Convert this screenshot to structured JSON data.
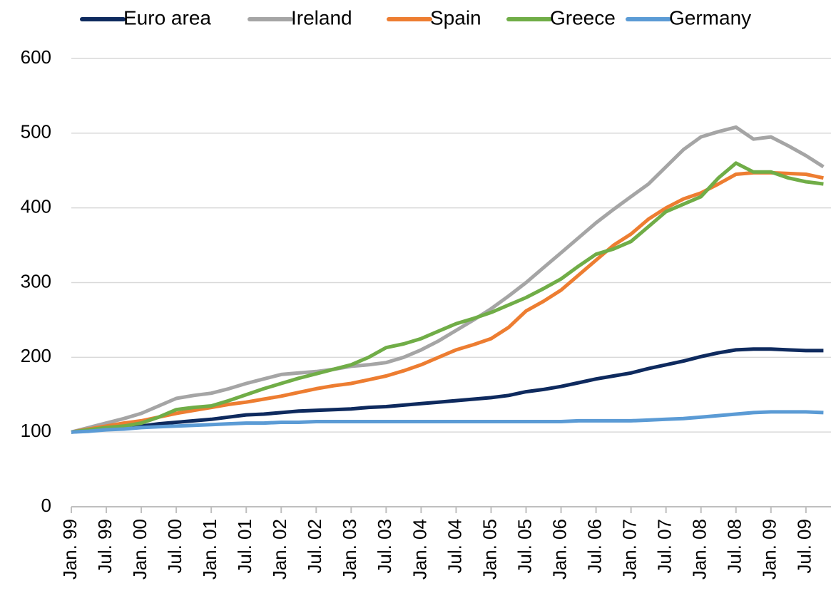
{
  "chart_data": {
    "type": "line",
    "categories": [
      "Jan. 99",
      null,
      "Jul. 99",
      null,
      "Jan. 00",
      null,
      "Jul. 00",
      null,
      "Jan. 01",
      null,
      "Jul. 01",
      null,
      "Jan. 02",
      null,
      "Jul. 02",
      null,
      "Jan. 03",
      null,
      "Jul. 03",
      null,
      "Jan. 04",
      null,
      "Jul. 04",
      null,
      "Jan. 05",
      null,
      "Jul. 05",
      null,
      "Jan. 06",
      null,
      "Jul. 06",
      null,
      "Jan. 07",
      null,
      "Jul. 07",
      null,
      "Jan. 08",
      null,
      "Jul. 08",
      null,
      "Jan. 09",
      null,
      "Jul. 09",
      null
    ],
    "series": [
      {
        "name": "Euro area",
        "color": "#0e2a5e",
        "values": [
          100,
          102,
          104,
          106,
          108,
          111,
          113,
          115,
          117,
          120,
          123,
          124,
          126,
          128,
          129,
          130,
          131,
          133,
          134,
          136,
          138,
          140,
          142,
          144,
          146,
          149,
          154,
          157,
          161,
          166,
          171,
          175,
          179,
          185,
          190,
          195,
          201,
          206,
          210,
          211,
          211,
          210,
          209,
          209
        ]
      },
      {
        "name": "Ireland",
        "color": "#a5a5a5",
        "values": [
          100,
          106,
          112,
          118,
          125,
          135,
          145,
          149,
          152,
          158,
          165,
          171,
          177,
          179,
          181,
          184,
          188,
          190,
          193,
          200,
          210,
          222,
          236,
          250,
          265,
          282,
          300,
          320,
          340,
          360,
          380,
          398,
          415,
          432,
          455,
          478,
          495,
          502,
          508,
          492,
          495,
          483,
          470,
          455
        ]
      },
      {
        "name": "Spain",
        "color": "#ed7d31",
        "values": [
          100,
          104,
          108,
          112,
          115,
          120,
          125,
          129,
          133,
          137,
          140,
          144,
          148,
          153,
          158,
          162,
          165,
          170,
          175,
          182,
          190,
          200,
          210,
          217,
          225,
          240,
          262,
          275,
          290,
          310,
          330,
          350,
          365,
          385,
          400,
          412,
          420,
          432,
          445,
          447,
          447,
          446,
          445,
          440
        ]
      },
      {
        "name": "Greece",
        "color": "#70ad47",
        "values": [
          100,
          103,
          106,
          108,
          112,
          120,
          130,
          133,
          135,
          142,
          150,
          158,
          165,
          172,
          178,
          184,
          190,
          200,
          213,
          218,
          225,
          235,
          245,
          252,
          260,
          270,
          280,
          292,
          305,
          322,
          338,
          345,
          355,
          375,
          395,
          405,
          415,
          440,
          460,
          448,
          448,
          440,
          435,
          432
        ]
      },
      {
        "name": "Germany",
        "color": "#5b9bd5",
        "values": [
          100,
          101,
          103,
          104,
          106,
          107,
          108,
          109,
          110,
          111,
          112,
          112,
          113,
          113,
          114,
          114,
          114,
          114,
          114,
          114,
          114,
          114,
          114,
          114,
          114,
          114,
          114,
          114,
          114,
          115,
          115,
          115,
          115,
          116,
          117,
          118,
          120,
          122,
          124,
          126,
          127,
          127,
          127,
          126
        ]
      }
    ],
    "ylim": [
      0,
      600
    ],
    "yticks": [
      0,
      100,
      200,
      300,
      400,
      500,
      600
    ],
    "grid": true,
    "legend": "top"
  }
}
